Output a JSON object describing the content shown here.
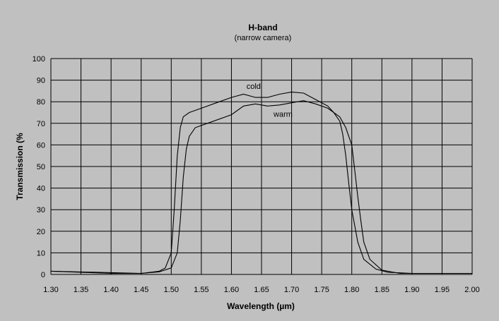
{
  "chart_data": {
    "type": "line",
    "title": "H-band",
    "subtitle": "(narrow camera)",
    "xlabel": "Wavelength (µm)",
    "ylabel": "Transmission (%",
    "xlim": [
      1.3,
      2.0
    ],
    "ylim": [
      0,
      100
    ],
    "x_ticks": [
      "1.30",
      "1.35",
      "1.40",
      "1.45",
      "1.50",
      "1.55",
      "1.60",
      "1.65",
      "1.70",
      "1.75",
      "1.80",
      "1.85",
      "1.90",
      "1.95",
      "2.00"
    ],
    "y_ticks": [
      "0",
      "10",
      "20",
      "30",
      "40",
      "50",
      "60",
      "70",
      "80",
      "90",
      "100"
    ],
    "grid": true,
    "background": "#c0c0c0",
    "line_color": "#000000",
    "series": [
      {
        "name": "cold",
        "x": [
          1.3,
          1.4,
          1.45,
          1.48,
          1.49,
          1.5,
          1.505,
          1.51,
          1.515,
          1.52,
          1.53,
          1.55,
          1.58,
          1.6,
          1.62,
          1.64,
          1.66,
          1.68,
          1.7,
          1.72,
          1.74,
          1.76,
          1.77,
          1.78,
          1.785,
          1.79,
          1.795,
          1.8,
          1.81,
          1.82,
          1.84,
          1.86,
          1.9,
          2.0
        ],
        "y": [
          1.5,
          0.5,
          0.5,
          1.5,
          3,
          10,
          30,
          55,
          68,
          73,
          75,
          77,
          80,
          82,
          83.5,
          82,
          82,
          83.5,
          84.5,
          84,
          81,
          78,
          75,
          71,
          65,
          55,
          42,
          30,
          15,
          7,
          2.5,
          1,
          0.5,
          0.5
        ]
      },
      {
        "name": "warm",
        "x": [
          1.3,
          1.45,
          1.48,
          1.5,
          1.51,
          1.515,
          1.52,
          1.525,
          1.53,
          1.54,
          1.56,
          1.6,
          1.62,
          1.64,
          1.66,
          1.68,
          1.7,
          1.72,
          1.74,
          1.76,
          1.78,
          1.79,
          1.8,
          1.805,
          1.81,
          1.815,
          1.82,
          1.83,
          1.85,
          1.88,
          2.0
        ],
        "y": [
          1.5,
          0.5,
          1.2,
          3,
          10,
          25,
          45,
          58,
          64,
          68,
          70,
          74,
          78,
          79,
          78,
          78.5,
          79.5,
          80.5,
          79,
          77,
          73,
          68,
          60,
          48,
          36,
          25,
          15,
          7,
          2,
          0.5,
          0.5
        ]
      }
    ],
    "annotations": [
      {
        "text": "cold",
        "x": 1.625,
        "y": 86
      },
      {
        "text": "warm",
        "x": 1.67,
        "y": 73
      }
    ]
  }
}
